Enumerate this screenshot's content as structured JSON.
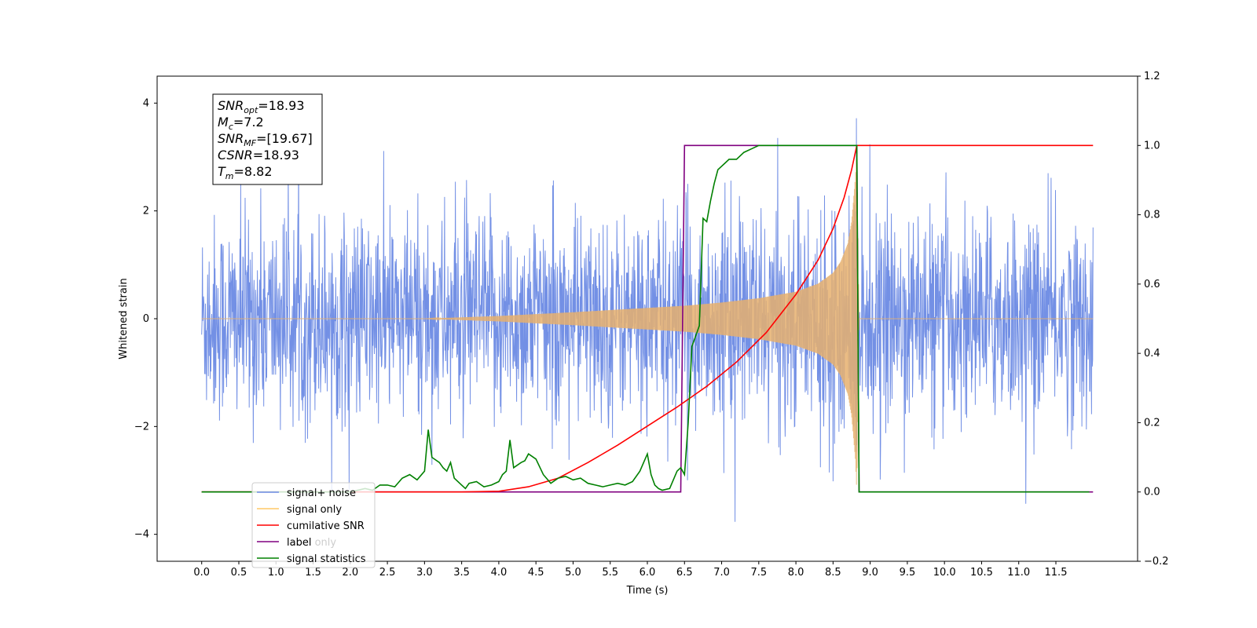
{
  "chart_data": {
    "type": "line",
    "xlabel": "Time (s)",
    "ylabel_left": "Whitened strain",
    "ylabel_right": "",
    "xlim": [
      -0.6,
      12.6
    ],
    "ylim_left": [
      -4.5,
      4.5
    ],
    "ylim_right": [
      -0.2,
      1.2
    ],
    "xticks": [
      "0.0",
      "0.5",
      "1.0",
      "1.5",
      "2.0",
      "2.5",
      "3.0",
      "3.5",
      "4.0",
      "4.5",
      "5.0",
      "5.5",
      "6.0",
      "6.5",
      "7.0",
      "7.5",
      "8.0",
      "8.5",
      "9.0",
      "9.5",
      "10.0",
      "10.5",
      "11.0",
      "11.5"
    ],
    "yticks_left": [
      "4",
      "2",
      "0",
      "−2",
      "−4"
    ],
    "yticks_right": [
      "1.2",
      "1.0",
      "0.8",
      "0.6",
      "0.4",
      "0.2",
      "0.0",
      "−0.2"
    ],
    "grid": false,
    "legend_position": "lower-left",
    "info_box": [
      {
        "base": "SNR",
        "sub": "opt",
        "text": "=18.93"
      },
      {
        "base": "M",
        "sub": "c",
        "text": "=7.2"
      },
      {
        "base": "SNR",
        "sub": "MF",
        "text": "=[19.67]"
      },
      {
        "base": "CSNR",
        "sub": "",
        "text": "=18.93"
      },
      {
        "base": "T",
        "sub": "m",
        "text": "=8.82"
      }
    ],
    "series": [
      {
        "name": "signal+ noise",
        "axis": "left",
        "color": "#6c8ae4",
        "description_range": "noise amplitude roughly ±2.5, spikes to ±4",
        "x_range": [
          0.0,
          12.0
        ],
        "amplitude_typical": 2.4
      },
      {
        "name": "signal only",
        "axis": "left",
        "color": "#e6b06e",
        "chirp_envelope": {
          "x": [
            0.0,
            3.0,
            4.0,
            5.0,
            6.0,
            6.5,
            7.0,
            7.5,
            8.0,
            8.3,
            8.5,
            8.6,
            8.7,
            8.75,
            8.8,
            8.82,
            8.85,
            12.0
          ],
          "amp": [
            0.0,
            0.0,
            0.05,
            0.12,
            0.2,
            0.24,
            0.3,
            0.38,
            0.5,
            0.65,
            0.85,
            1.05,
            1.4,
            1.8,
            2.6,
            3.2,
            0.0,
            0.0
          ]
        }
      },
      {
        "name": "cumilative SNR",
        "axis": "right",
        "color": "#ff0000",
        "x": [
          0.0,
          3.5,
          4.0,
          4.4,
          4.8,
          5.2,
          5.6,
          6.0,
          6.4,
          6.8,
          7.2,
          7.6,
          8.0,
          8.3,
          8.5,
          8.65,
          8.75,
          8.82,
          9.0,
          12.0
        ],
        "y": [
          0.0,
          0.0,
          0.002,
          0.015,
          0.04,
          0.085,
          0.135,
          0.19,
          0.245,
          0.305,
          0.375,
          0.46,
          0.57,
          0.67,
          0.76,
          0.85,
          0.93,
          1.0,
          1.0,
          1.0
        ]
      },
      {
        "name": "label",
        "axis": "right",
        "color": "#800080",
        "x": [
          0.0,
          6.45,
          6.5,
          8.82,
          8.85,
          12.0
        ],
        "y": [
          0.0,
          0.0,
          1.0,
          1.0,
          0.0,
          0.0
        ]
      },
      {
        "name": "label only",
        "axis": "right",
        "color": "#800080",
        "x": [],
        "y": []
      },
      {
        "name": "signal statistics",
        "axis": "right",
        "color": "#008000",
        "x": [
          0.0,
          2.0,
          2.2,
          2.3,
          2.4,
          2.5,
          2.6,
          2.7,
          2.8,
          2.9,
          3.0,
          3.05,
          3.1,
          3.2,
          3.25,
          3.3,
          3.35,
          3.4,
          3.5,
          3.55,
          3.6,
          3.7,
          3.8,
          3.9,
          4.0,
          4.05,
          4.1,
          4.15,
          4.2,
          4.3,
          4.35,
          4.4,
          4.5,
          4.6,
          4.7,
          4.8,
          4.9,
          5.0,
          5.1,
          5.2,
          5.3,
          5.4,
          5.5,
          5.6,
          5.7,
          5.8,
          5.9,
          6.0,
          6.05,
          6.1,
          6.15,
          6.2,
          6.3,
          6.4,
          6.45,
          6.5,
          6.55,
          6.6,
          6.65,
          6.7,
          6.75,
          6.8,
          6.85,
          6.9,
          6.95,
          7.0,
          7.05,
          7.1,
          7.2,
          7.3,
          7.4,
          7.5,
          8.0,
          8.5,
          8.82,
          8.85,
          11.95
        ],
        "y": [
          0.0,
          0.0,
          0.01,
          0.005,
          0.02,
          0.02,
          0.015,
          0.04,
          0.05,
          0.035,
          0.06,
          0.18,
          0.1,
          0.085,
          0.07,
          0.06,
          0.085,
          0.04,
          0.02,
          0.01,
          0.025,
          0.03,
          0.015,
          0.02,
          0.03,
          0.05,
          0.06,
          0.15,
          0.07,
          0.085,
          0.09,
          0.11,
          0.095,
          0.05,
          0.025,
          0.04,
          0.045,
          0.035,
          0.04,
          0.025,
          0.02,
          0.015,
          0.02,
          0.025,
          0.02,
          0.03,
          0.06,
          0.11,
          0.05,
          0.02,
          0.01,
          0.005,
          0.01,
          0.06,
          0.07,
          0.05,
          0.2,
          0.42,
          0.45,
          0.48,
          0.79,
          0.78,
          0.84,
          0.89,
          0.93,
          0.94,
          0.95,
          0.96,
          0.96,
          0.98,
          0.99,
          1.0,
          1.0,
          1.0,
          1.0,
          0.0,
          0.0
        ]
      }
    ]
  }
}
